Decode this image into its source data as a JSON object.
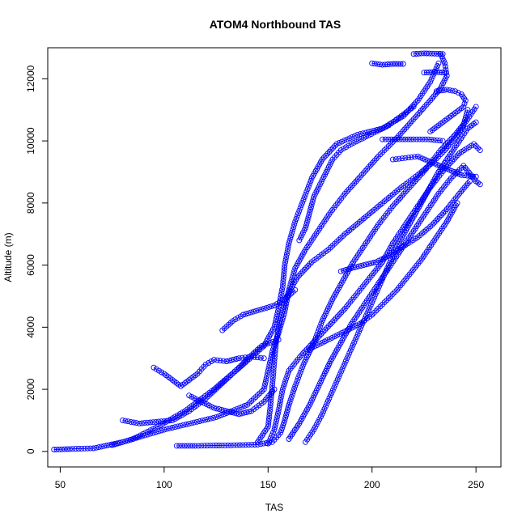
{
  "chart_data": {
    "type": "scatter",
    "title": "ATOM4 Northbound TAS",
    "xlabel": "TAS",
    "ylabel": "Altitude (m)",
    "xlim": [
      44,
      262
    ],
    "ylim": [
      -500,
      13000
    ],
    "xticks": [
      "50",
      "100",
      "150",
      "200",
      "250"
    ],
    "xtick_values": [
      50,
      100,
      150,
      200,
      250
    ],
    "yticks": [
      "0",
      "2000",
      "4000",
      "6000",
      "8000",
      "10000",
      "12000"
    ],
    "ytick_values": [
      0,
      2000,
      4000,
      6000,
      8000,
      10000,
      12000
    ],
    "grid": false,
    "legend": "none",
    "marker": "open-circle",
    "connected_with_lines": true,
    "color": "#0000ff",
    "series": [
      {
        "values": [
          [
            47,
            60
          ],
          [
            56,
            80
          ],
          [
            66,
            100
          ],
          [
            80,
            300
          ],
          [
            100,
            700
          ],
          [
            125,
            1100
          ],
          [
            140,
            1500
          ],
          [
            148,
            2000
          ],
          [
            150,
            2600
          ],
          [
            152,
            3200
          ],
          [
            155,
            3800
          ],
          [
            158,
            4500
          ],
          [
            160,
            5200
          ],
          [
            163,
            5900
          ],
          [
            168,
            6500
          ],
          [
            174,
            7100
          ],
          [
            180,
            7700
          ],
          [
            187,
            8300
          ],
          [
            195,
            8900
          ],
          [
            203,
            9500
          ],
          [
            212,
            10100
          ],
          [
            220,
            10700
          ],
          [
            228,
            11300
          ],
          [
            233,
            11700
          ],
          [
            236,
            12100
          ],
          [
            235,
            12500
          ],
          [
            233,
            12800
          ]
        ]
      },
      {
        "values": [
          [
            75,
            200
          ],
          [
            85,
            400
          ],
          [
            97,
            800
          ],
          [
            110,
            1300
          ],
          [
            124,
            2000
          ],
          [
            138,
            2800
          ],
          [
            148,
            3400
          ],
          [
            153,
            4000
          ],
          [
            155,
            4600
          ],
          [
            157,
            5300
          ],
          [
            158,
            6000
          ],
          [
            160,
            6700
          ],
          [
            163,
            7400
          ],
          [
            167,
            8100
          ],
          [
            171,
            8800
          ],
          [
            176,
            9400
          ],
          [
            183,
            9900
          ],
          [
            193,
            10200
          ],
          [
            205,
            10400
          ],
          [
            215,
            10800
          ],
          [
            222,
            11300
          ],
          [
            228,
            11900
          ],
          [
            232,
            12500
          ]
        ]
      },
      {
        "values": [
          [
            106,
            180
          ],
          [
            115,
            180
          ],
          [
            125,
            190
          ],
          [
            135,
            200
          ],
          [
            145,
            220
          ],
          [
            152,
            300
          ],
          [
            156,
            600
          ],
          [
            158,
            1000
          ],
          [
            160,
            1500
          ],
          [
            163,
            2100
          ],
          [
            167,
            2800
          ],
          [
            172,
            3500
          ],
          [
            176,
            4200
          ],
          [
            181,
            4900
          ],
          [
            186,
            5500
          ],
          [
            191,
            6100
          ],
          [
            197,
            6700
          ],
          [
            203,
            7300
          ],
          [
            210,
            7900
          ],
          [
            218,
            8500
          ],
          [
            226,
            9100
          ],
          [
            233,
            9700
          ],
          [
            240,
            10200
          ],
          [
            246,
            10700
          ],
          [
            250,
            11100
          ]
        ]
      },
      {
        "values": [
          [
            150,
            250
          ],
          [
            153,
            700
          ],
          [
            155,
            1300
          ],
          [
            157,
            2000
          ],
          [
            160,
            2600
          ],
          [
            166,
            3100
          ],
          [
            173,
            3600
          ],
          [
            180,
            4100
          ],
          [
            187,
            4600
          ],
          [
            193,
            5100
          ],
          [
            199,
            5600
          ],
          [
            205,
            6100
          ],
          [
            210,
            6700
          ],
          [
            216,
            7300
          ],
          [
            222,
            7900
          ],
          [
            228,
            8500
          ],
          [
            235,
            9100
          ],
          [
            242,
            9600
          ],
          [
            249,
            9900
          ],
          [
            252,
            9700
          ]
        ]
      },
      {
        "values": [
          [
            145,
            300
          ],
          [
            150,
            800
          ],
          [
            151,
            1400
          ],
          [
            152,
            2100
          ],
          [
            153,
            2900
          ],
          [
            154,
            3600
          ],
          [
            156,
            4300
          ],
          [
            159,
            5000
          ],
          [
            164,
            5600
          ],
          [
            171,
            6100
          ],
          [
            179,
            6500
          ],
          [
            187,
            7000
          ],
          [
            196,
            7500
          ],
          [
            205,
            8000
          ],
          [
            214,
            8500
          ],
          [
            222,
            8900
          ],
          [
            229,
            9300
          ],
          [
            235,
            9700
          ],
          [
            240,
            10100
          ],
          [
            244,
            10500
          ],
          [
            246,
            11000
          ]
        ]
      },
      {
        "values": [
          [
            160,
            400
          ],
          [
            165,
            900
          ],
          [
            170,
            1500
          ],
          [
            175,
            2200
          ],
          [
            180,
            2900
          ],
          [
            185,
            3500
          ],
          [
            190,
            4100
          ],
          [
            196,
            4700
          ],
          [
            202,
            5300
          ],
          [
            208,
            5900
          ],
          [
            214,
            6500
          ],
          [
            220,
            7100
          ],
          [
            226,
            7700
          ],
          [
            232,
            8300
          ],
          [
            238,
            8800
          ],
          [
            244,
            9200
          ],
          [
            250,
            8700
          ],
          [
            252,
            8600
          ]
        ]
      },
      {
        "values": [
          [
            168,
            300
          ],
          [
            172,
            700
          ],
          [
            176,
            1200
          ],
          [
            180,
            1800
          ],
          [
            184,
            2400
          ],
          [
            188,
            3000
          ],
          [
            192,
            3600
          ],
          [
            196,
            4200
          ],
          [
            200,
            4800
          ],
          [
            204,
            5400
          ],
          [
            208,
            6000
          ],
          [
            212,
            6600
          ],
          [
            217,
            7200
          ],
          [
            222,
            7800
          ],
          [
            227,
            8400
          ],
          [
            232,
            9000
          ],
          [
            237,
            9500
          ],
          [
            242,
            10000
          ],
          [
            246,
            10400
          ],
          [
            250,
            10600
          ]
        ]
      },
      {
        "values": [
          [
            80,
            1000
          ],
          [
            88,
            900
          ],
          [
            96,
            950
          ],
          [
            104,
            1000
          ],
          [
            112,
            1300
          ],
          [
            120,
            1700
          ],
          [
            128,
            2200
          ],
          [
            136,
            2700
          ],
          [
            142,
            3100
          ],
          [
            147,
            3400
          ],
          [
            151,
            3500
          ],
          [
            155,
            3600
          ]
        ]
      },
      {
        "values": [
          [
            95,
            2700
          ],
          [
            100,
            2500
          ],
          [
            104,
            2300
          ],
          [
            108,
            2100
          ],
          [
            112,
            2300
          ],
          [
            116,
            2500
          ],
          [
            120,
            2800
          ],
          [
            124,
            2950
          ],
          [
            130,
            2900
          ],
          [
            136,
            3000
          ],
          [
            142,
            3050
          ],
          [
            148,
            3000
          ]
        ]
      },
      {
        "values": [
          [
            128,
            3900
          ],
          [
            133,
            4200
          ],
          [
            138,
            4400
          ],
          [
            143,
            4500
          ],
          [
            148,
            4600
          ],
          [
            153,
            4700
          ],
          [
            158,
            4900
          ],
          [
            163,
            5200
          ]
        ]
      },
      {
        "values": [
          [
            165,
            6800
          ],
          [
            168,
            7200
          ],
          [
            170,
            7700
          ],
          [
            172,
            8200
          ],
          [
            175,
            8600
          ],
          [
            178,
            9000
          ],
          [
            181,
            9400
          ],
          [
            185,
            9700
          ],
          [
            190,
            9900
          ],
          [
            196,
            10100
          ],
          [
            202,
            10300
          ],
          [
            208,
            10500
          ],
          [
            214,
            10800
          ],
          [
            220,
            11100
          ]
        ]
      },
      {
        "values": [
          [
            200,
            12500
          ],
          [
            205,
            12450
          ],
          [
            210,
            12480
          ],
          [
            215,
            12480
          ]
        ]
      },
      {
        "values": [
          [
            220,
            12800
          ],
          [
            225,
            12820
          ],
          [
            230,
            12810
          ],
          [
            234,
            12800
          ]
        ]
      },
      {
        "values": [
          [
            225,
            12200
          ],
          [
            230,
            12220
          ],
          [
            235,
            12200
          ]
        ]
      },
      {
        "values": [
          [
            231,
            11600
          ],
          [
            236,
            11650
          ],
          [
            240,
            11600
          ],
          [
            243,
            11500
          ],
          [
            245,
            11300
          ],
          [
            244,
            11100
          ],
          [
            240,
            10900
          ],
          [
            236,
            10700
          ],
          [
            232,
            10500
          ],
          [
            228,
            10300
          ]
        ]
      },
      {
        "values": [
          [
            205,
            10050
          ],
          [
            212,
            10050
          ],
          [
            220,
            10050
          ],
          [
            227,
            10050
          ],
          [
            234,
            10000
          ]
        ]
      },
      {
        "values": [
          [
            210,
            9400
          ],
          [
            216,
            9450
          ],
          [
            222,
            9500
          ],
          [
            229,
            9300
          ],
          [
            236,
            9100
          ],
          [
            243,
            8900
          ],
          [
            250,
            8850
          ]
        ]
      },
      {
        "values": [
          [
            112,
            1800
          ],
          [
            118,
            1600
          ],
          [
            124,
            1400
          ],
          [
            130,
            1300
          ],
          [
            136,
            1200
          ],
          [
            142,
            1300
          ],
          [
            148,
            1600
          ],
          [
            153,
            2000
          ]
        ]
      },
      {
        "values": [
          [
            185,
            5800
          ],
          [
            190,
            5900
          ],
          [
            196,
            6000
          ],
          [
            202,
            6100
          ],
          [
            208,
            6300
          ],
          [
            215,
            6600
          ],
          [
            222,
            6900
          ],
          [
            229,
            7300
          ],
          [
            236,
            7800
          ],
          [
            242,
            8300
          ],
          [
            247,
            8700
          ]
        ]
      },
      {
        "values": [
          [
            170,
            3300
          ],
          [
            176,
            3500
          ],
          [
            182,
            3700
          ],
          [
            188,
            3900
          ],
          [
            194,
            4100
          ],
          [
            200,
            4400
          ],
          [
            206,
            4800
          ],
          [
            212,
            5200
          ],
          [
            218,
            5700
          ],
          [
            224,
            6200
          ],
          [
            230,
            6800
          ],
          [
            236,
            7400
          ],
          [
            241,
            8000
          ]
        ]
      }
    ]
  }
}
